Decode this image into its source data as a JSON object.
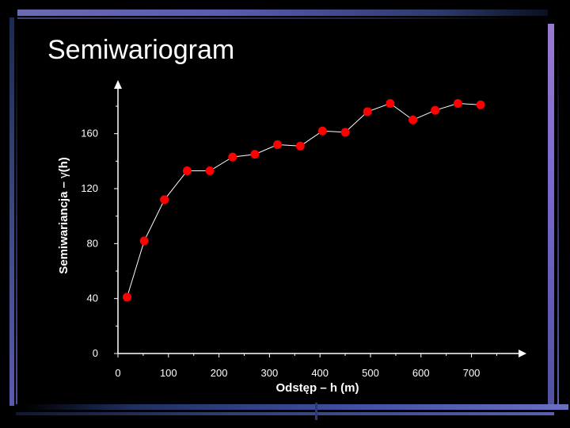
{
  "slide": {
    "title": "Semiwariogram"
  },
  "colors": {
    "background": "#000000",
    "points": "#ff0000",
    "line": "#ffffff",
    "axes": "#ffffff",
    "frame_accent": "#5a5ab0"
  },
  "chart_data": {
    "type": "line",
    "title": "",
    "xlabel": "Odstęp – h (m)",
    "ylabel_prefix": "Semiwariancja – ",
    "ylabel_symbol": "γ",
    "ylabel_suffix": "(h)",
    "xlim": [
      0,
      790
    ],
    "ylim": [
      0,
      195
    ],
    "xticks": [
      0,
      100,
      200,
      300,
      400,
      500,
      600,
      700
    ],
    "yticks": [
      0,
      40,
      80,
      120,
      160
    ],
    "grid": false,
    "markers": "circle",
    "series": [
      {
        "x": [
          18,
          52,
          92,
          137,
          182,
          227,
          271,
          316,
          361,
          405,
          450,
          494,
          539,
          584,
          628,
          673,
          718
        ],
        "y": [
          41,
          82,
          112,
          133,
          133,
          143,
          145,
          152,
          151,
          162,
          161,
          176,
          182,
          170,
          177,
          182,
          181
        ]
      }
    ]
  }
}
